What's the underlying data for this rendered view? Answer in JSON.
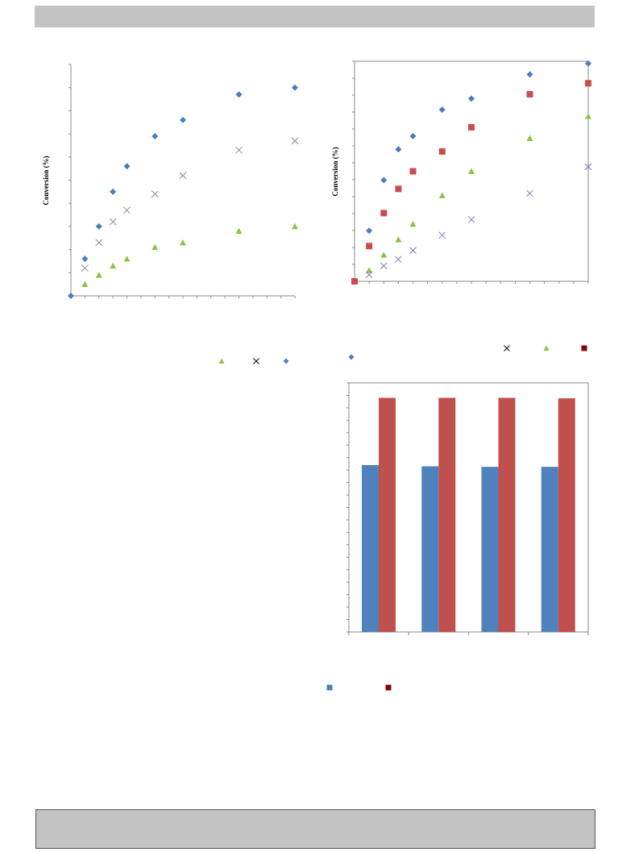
{
  "colors": {
    "blue": "#4a7cc4",
    "grey_x": "#8a8a8a",
    "green": "#8ec149",
    "red": "#c94e4d",
    "purple": "#7f72c8",
    "bar_blue": "#4f81bd",
    "bar_red": "#c0504d",
    "legend_red": "#8b0000"
  },
  "chart_data": [
    {
      "id": "chart-a",
      "type": "scatter",
      "ylabel": "Conversion (%)",
      "xlim": [
        0,
        16
      ],
      "ylim": [
        0,
        100
      ],
      "series": [
        {
          "marker": "diamond",
          "color": "#4a7cc4",
          "x": [
            0,
            1,
            2,
            3,
            4,
            6,
            8,
            12,
            16
          ],
          "y": [
            0,
            16,
            30,
            45,
            56,
            69,
            76,
            87,
            90
          ]
        },
        {
          "marker": "x",
          "color": "#8a8a8a",
          "x": [
            1,
            2,
            3,
            4,
            6,
            8,
            12,
            16
          ],
          "y": [
            12,
            23,
            32,
            37,
            44,
            52,
            63,
            67
          ]
        },
        {
          "marker": "triangle",
          "color": "#8ec149",
          "x": [
            1,
            2,
            3,
            4,
            6,
            8,
            12,
            16
          ],
          "y": [
            5,
            9,
            13,
            16,
            21,
            23,
            28,
            30
          ]
        }
      ],
      "legend": [
        {
          "marker": "triangle",
          "color": "#8ec149"
        },
        {
          "marker": "x",
          "color": "#000000"
        },
        {
          "marker": "diamond",
          "color": "#4a7cc4"
        }
      ]
    },
    {
      "id": "chart-b",
      "type": "scatter",
      "ylabel": "Conversion (%)",
      "xlim": [
        0,
        16
      ],
      "ylim": [
        0,
        100
      ],
      "series": [
        {
          "marker": "diamond",
          "color": "#4a7cc4",
          "x": [
            1,
            2,
            3,
            4,
            6,
            8,
            12,
            16
          ],
          "y": [
            23,
            46,
            60,
            66,
            78,
            83,
            94,
            99
          ]
        },
        {
          "marker": "square",
          "color": "#c94e4d",
          "x": [
            0,
            1,
            2,
            3,
            4,
            6,
            8,
            12,
            16
          ],
          "y": [
            0,
            16,
            31,
            42,
            50,
            59,
            70,
            85,
            90
          ]
        },
        {
          "marker": "triangle",
          "color": "#8ec149",
          "x": [
            1,
            2,
            3,
            4,
            6,
            8,
            12,
            16
          ],
          "y": [
            5,
            12,
            19,
            26,
            39,
            50,
            65,
            75
          ]
        },
        {
          "marker": "x",
          "color": "#7f72c8",
          "x": [
            1,
            2,
            3,
            4,
            6,
            8,
            12,
            16
          ],
          "y": [
            3,
            7,
            10,
            14,
            21,
            28,
            40,
            52
          ]
        }
      ],
      "legend": [
        {
          "marker": "x",
          "color": "#000000"
        },
        {
          "marker": "triangle",
          "color": "#8ec149"
        },
        {
          "marker": "square",
          "color": "#8b0000"
        },
        {
          "marker": "diamond",
          "color": "#4a7cc4"
        }
      ]
    },
    {
      "id": "chart-c",
      "type": "bar",
      "ylim": [
        0,
        100
      ],
      "series": [
        {
          "color": "#4f81bd",
          "values": [
            67,
            66.5,
            66.3,
            66.3
          ]
        },
        {
          "color": "#c0504d",
          "values": [
            94,
            94,
            94,
            93.8
          ]
        }
      ],
      "legend": [
        {
          "marker": "square",
          "color": "#4f81bd"
        },
        {
          "marker": "square",
          "color": "#8b0000"
        }
      ]
    }
  ]
}
